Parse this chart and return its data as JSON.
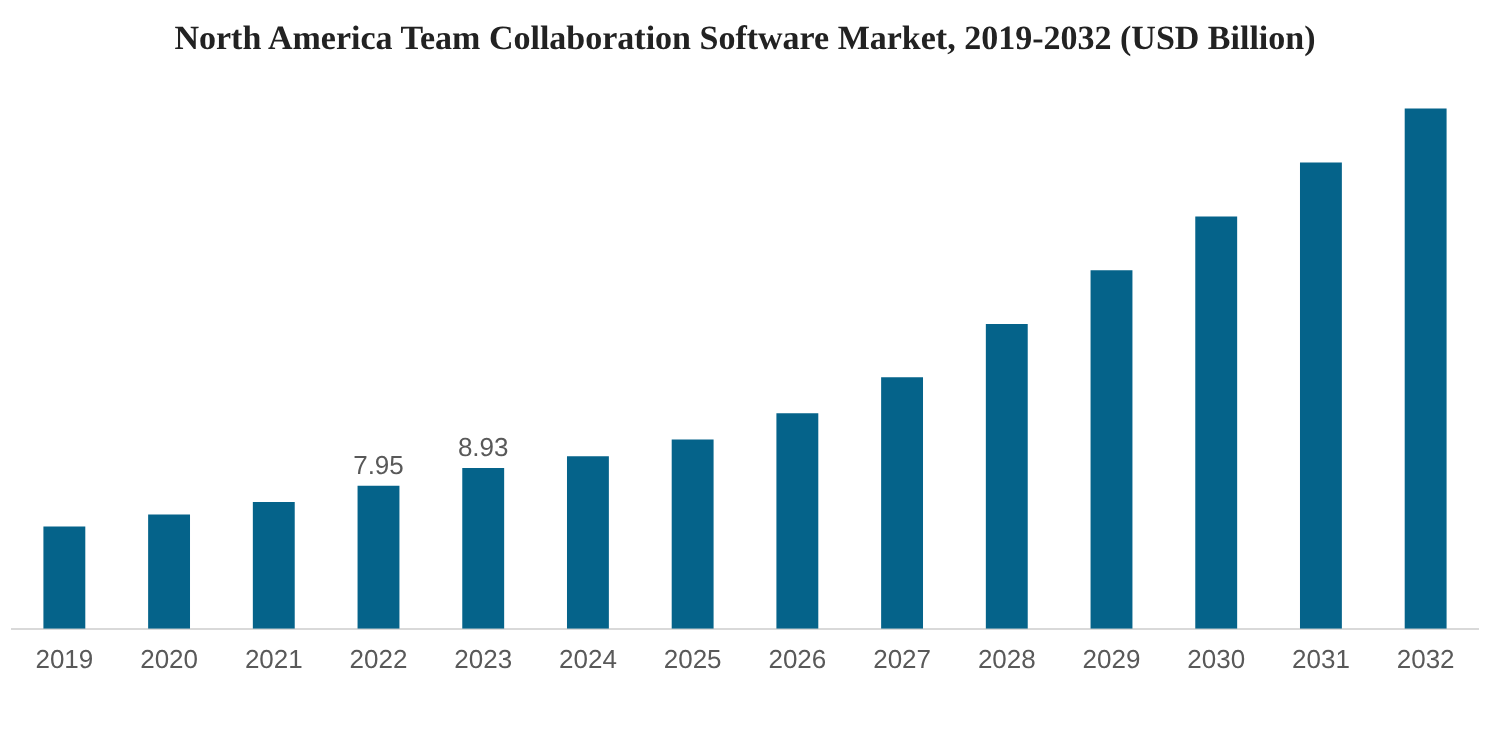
{
  "chart_data": {
    "type": "bar",
    "title": "North America Team Collaboration Software Market, 2019-2032 (USD Billion)",
    "categories": [
      "2019",
      "2020",
      "2021",
      "2022",
      "2023",
      "2024",
      "2025",
      "2026",
      "2027",
      "2028",
      "2029",
      "2030",
      "2031",
      "2032"
    ],
    "values": [
      5.69,
      6.35,
      7.04,
      7.95,
      8.93,
      9.59,
      10.51,
      11.97,
      13.98,
      16.93,
      19.92,
      22.91,
      25.91,
      28.9
    ],
    "value_labels": [
      null,
      null,
      null,
      "7.95",
      "8.93",
      null,
      null,
      null,
      null,
      null,
      null,
      null,
      null,
      null
    ],
    "color": "#05638a",
    "tick_labels": "x",
    "grid": false,
    "legend": false
  }
}
